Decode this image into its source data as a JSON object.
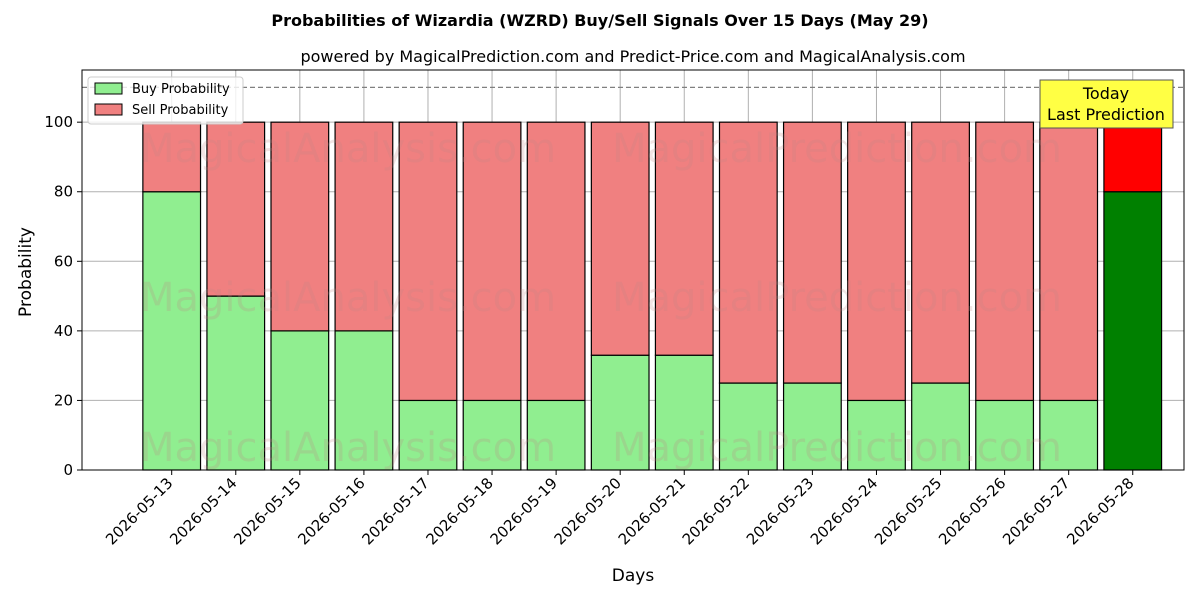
{
  "chart_data": {
    "type": "bar",
    "stacked": true,
    "title": "Probabilities of Wizardia (WZRD) Buy/Sell Signals Over 15 Days (May 29)",
    "subtitle": "powered by MagicalPrediction.com and Predict-Price.com and MagicalAnalysis.com",
    "xlabel": "Days",
    "ylabel": "Probability",
    "ylim": [
      0,
      115
    ],
    "yticks": [
      0,
      20,
      40,
      60,
      80,
      100
    ],
    "reference_line": 110,
    "grid": true,
    "legend_position": "top-left",
    "categories": [
      "2026-05-13",
      "2026-05-14",
      "2026-05-15",
      "2026-05-16",
      "2026-05-17",
      "2026-05-18",
      "2026-05-19",
      "2026-05-20",
      "2026-05-21",
      "2026-05-22",
      "2026-05-23",
      "2026-05-24",
      "2026-05-25",
      "2026-05-26",
      "2026-05-27",
      "2026-05-28"
    ],
    "series": [
      {
        "name": "Buy Probability",
        "color": "#90ee90",
        "highlight_color": "#008000",
        "values": [
          80,
          50,
          40,
          40,
          20,
          20,
          20,
          33,
          33,
          25,
          25,
          20,
          25,
          20,
          20,
          80
        ]
      },
      {
        "name": "Sell Probability",
        "color": "#f08080",
        "highlight_color": "#ff0000",
        "values": [
          20,
          50,
          60,
          60,
          80,
          80,
          80,
          67,
          67,
          75,
          75,
          80,
          75,
          80,
          80,
          20
        ]
      }
    ],
    "annotation": {
      "lines": [
        "Today",
        "Last Prediction"
      ],
      "color": "#ffff44"
    },
    "watermarks": [
      "MagicalAnalysis.com",
      "MagicalPrediction.com"
    ]
  }
}
